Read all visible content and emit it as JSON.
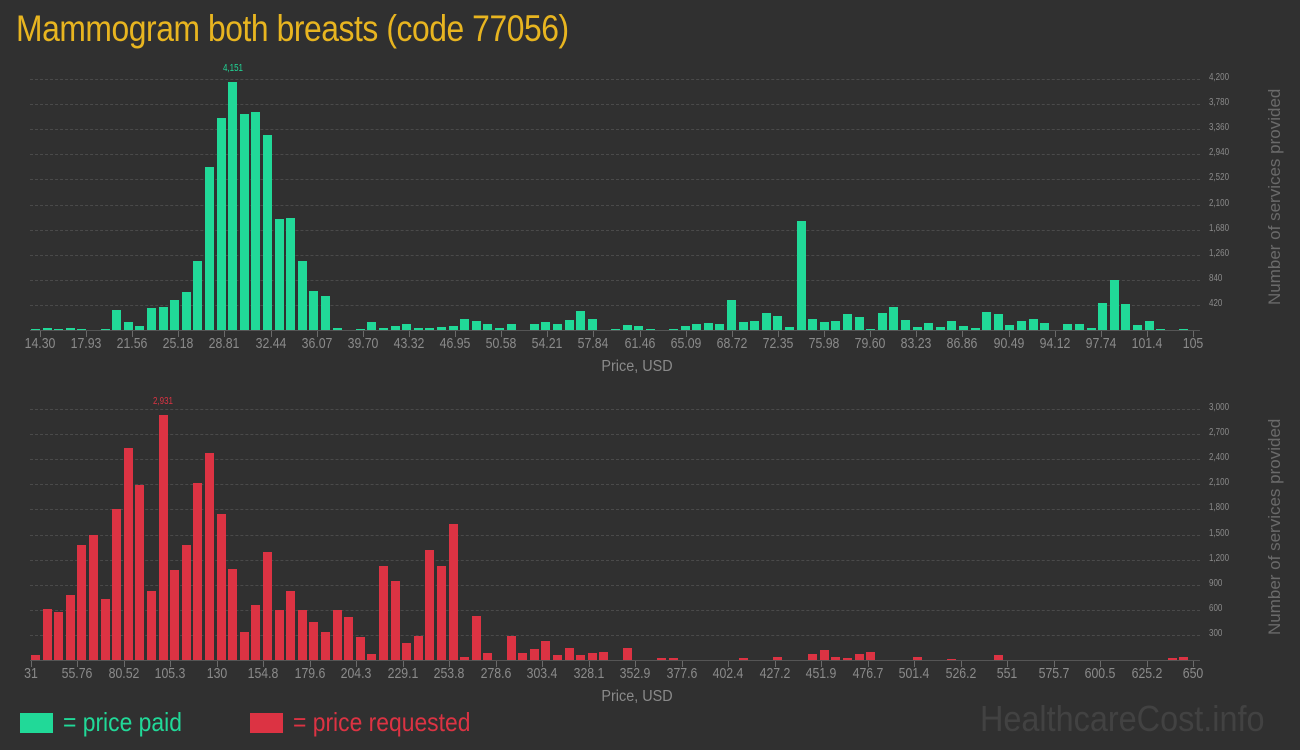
{
  "title": "Mammogram both breasts (code 77056)",
  "legend": {
    "paid_label": "= price paid",
    "requested_label": "= price requested",
    "paid_color": "#21d998",
    "requested_color": "#dc3343"
  },
  "watermark": "HealthcareCost.info",
  "chart_data": [
    {
      "type": "bar",
      "title": "Price paid",
      "xlabel": "Price, USD",
      "ylabel": "Number of services provided",
      "color": "#21d998",
      "ylim": [
        0,
        4200
      ],
      "yticks": [
        "420",
        "840",
        "1,260",
        "1,680",
        "2,100",
        "2,520",
        "2,940",
        "3,360",
        "3,780",
        "4,200"
      ],
      "ytick_values": [
        420,
        840,
        1260,
        1680,
        2100,
        2520,
        2940,
        3360,
        3780,
        4200
      ],
      "xticks": [
        "14.30",
        "17.93",
        "21.56",
        "25.18",
        "28.81",
        "32.44",
        "36.07",
        "39.70",
        "43.32",
        "46.95",
        "50.58",
        "54.21",
        "57.84",
        "61.46",
        "65.09",
        "68.72",
        "72.35",
        "75.98",
        "79.60",
        "83.23",
        "86.86",
        "90.49",
        "94.12",
        "97.74",
        "101.4",
        "105"
      ],
      "peak_label": "4,151",
      "peak_value": 4151,
      "values": [
        20,
        30,
        20,
        30,
        15,
        0,
        25,
        340,
        140,
        60,
        360,
        390,
        510,
        640,
        1150,
        2720,
        3540,
        4151,
        3620,
        3650,
        3270,
        1860,
        1880,
        1150,
        650,
        570,
        40,
        0,
        10,
        130,
        40,
        70,
        100,
        30,
        40,
        50,
        60,
        190,
        150,
        100,
        30,
        100,
        0,
        100,
        130,
        100,
        170,
        320,
        180,
        0,
        15,
        80,
        60,
        20,
        0,
        10,
        60,
        100,
        120,
        100,
        500,
        140,
        150,
        290,
        240,
        50,
        1820,
        190,
        130,
        150,
        260,
        210,
        20,
        280,
        380,
        170,
        50,
        120,
        50,
        150,
        70,
        30,
        300,
        270,
        90,
        150,
        180,
        110,
        0,
        100,
        100,
        40,
        450,
        840,
        430,
        90,
        150,
        10,
        0,
        15
      ]
    },
    {
      "type": "bar",
      "title": "Price requested",
      "xlabel": "Price, USD",
      "ylabel": "Number of services provided",
      "color": "#dc3343",
      "ylim": [
        0,
        3000
      ],
      "yticks": [
        "300",
        "600",
        "900",
        "1,200",
        "1,500",
        "1,800",
        "2,100",
        "2,400",
        "2,700",
        "3,000"
      ],
      "ytick_values": [
        300,
        600,
        900,
        1200,
        1500,
        1800,
        2100,
        2400,
        2700,
        3000
      ],
      "xticks": [
        "31",
        "55.76",
        "80.52",
        "105.3",
        "130",
        "154.8",
        "179.6",
        "204.3",
        "229.1",
        "253.8",
        "278.6",
        "303.4",
        "328.1",
        "352.9",
        "377.6",
        "402.4",
        "427.2",
        "451.9",
        "476.7",
        "501.4",
        "526.2",
        "551",
        "575.7",
        "600.5",
        "625.2",
        "650"
      ],
      "peak_label": "2,931",
      "peak_value": 2931,
      "values": [
        60,
        610,
        570,
        780,
        1380,
        1500,
        730,
        1810,
        2530,
        2090,
        820,
        2931,
        1070,
        1380,
        2120,
        2470,
        1750,
        1090,
        330,
        660,
        1290,
        600,
        820,
        600,
        450,
        330,
        600,
        510,
        270,
        70,
        1120,
        940,
        200,
        290,
        1310,
        1120,
        1630,
        40,
        520,
        80,
        0,
        290,
        80,
        130,
        230,
        60,
        140,
        60,
        80,
        90,
        0,
        140,
        0,
        0,
        20,
        20,
        0,
        0,
        0,
        0,
        0,
        20,
        0,
        0,
        40,
        0,
        0,
        70,
        120,
        40,
        20,
        70,
        100,
        0,
        0,
        0,
        40,
        0,
        0,
        10,
        0,
        0,
        0,
        60,
        0,
        0,
        0,
        0,
        0,
        0,
        0,
        0,
        0,
        0,
        0,
        0,
        0,
        0,
        20,
        30
      ]
    }
  ]
}
